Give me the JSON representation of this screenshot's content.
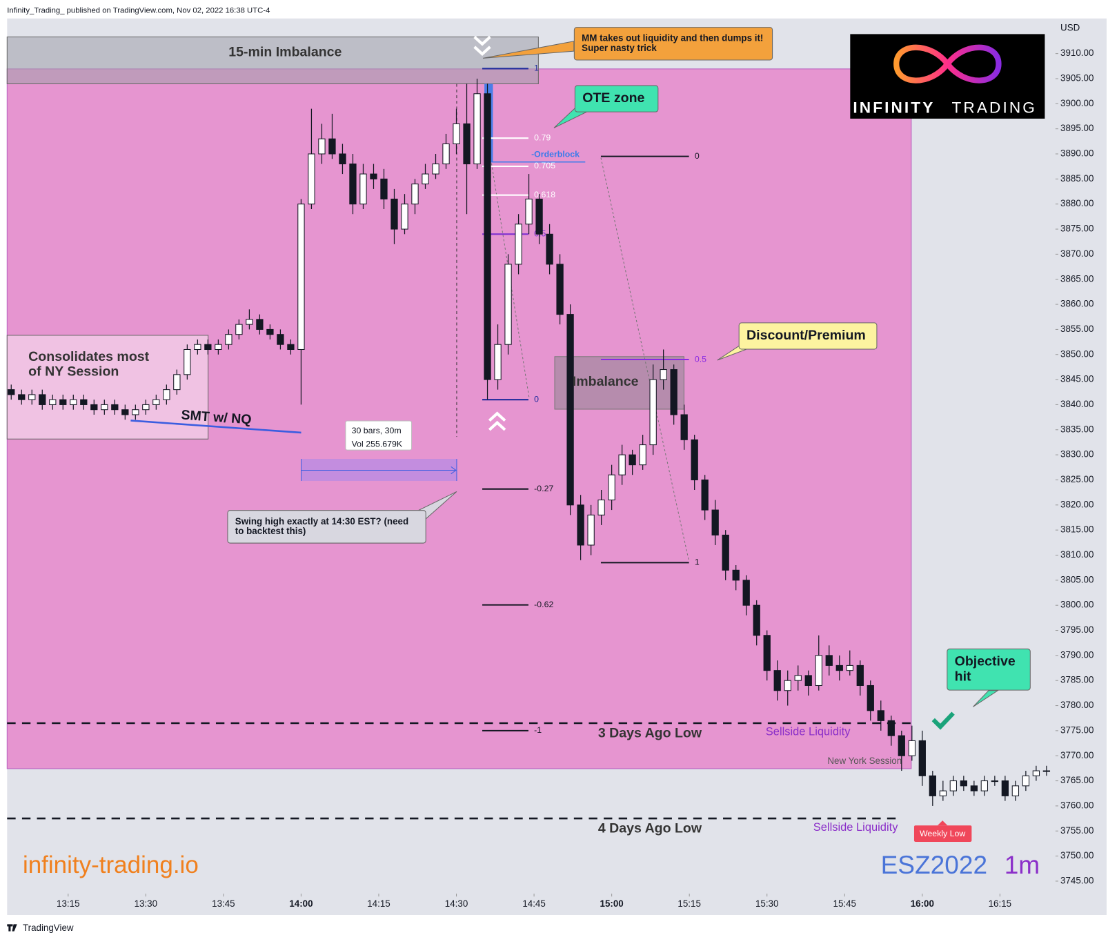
{
  "header": {
    "published": "Infinity_Trading_ published on TradingView.com, Nov 02, 2022 16:38 UTC-4",
    "footer": "TradingView"
  },
  "logo": {
    "word1": "INFINITY",
    "word2": "TRADING"
  },
  "watermark": {
    "site": "infinity-trading.io",
    "symbol": "ESZ2022",
    "interval": "1m"
  },
  "chart_data": {
    "type": "candlestick",
    "y_axis_label": "USD",
    "colors": {
      "up": "#ffffff",
      "down": "#131722",
      "wick": "#131722"
    },
    "grid": false,
    "xlim": [
      "13:03",
      "16:26"
    ],
    "xticks": [
      "13:15",
      "13:30",
      "13:45",
      "14:00",
      "14:15",
      "14:30",
      "14:45",
      "15:00",
      "15:15",
      "15:30",
      "15:45",
      "16:00",
      "16:15"
    ],
    "ylim": [
      3742.5,
      3917
    ],
    "yticks": [
      {
        "value": 3745,
        "label": "3745.00"
      },
      {
        "value": 3750,
        "label": "3750.00"
      },
      {
        "value": 3755,
        "label": "3755.00"
      },
      {
        "value": 3760,
        "label": "3760.00"
      },
      {
        "value": 3765,
        "label": "3765.00"
      },
      {
        "value": 3770,
        "label": "3770.00"
      },
      {
        "value": 3775,
        "label": "3775.00"
      },
      {
        "value": 3780,
        "label": "3780.00"
      },
      {
        "value": 3785,
        "label": "3785.00"
      },
      {
        "value": 3790,
        "label": "3790.00"
      },
      {
        "value": 3795,
        "label": "3795.00"
      },
      {
        "value": 3800,
        "label": "3800.00"
      },
      {
        "value": 3805,
        "label": "3805.00"
      },
      {
        "value": 3810,
        "label": "3810.00"
      },
      {
        "value": 3815,
        "label": "3815.00"
      },
      {
        "value": 3820,
        "label": "3820.00"
      },
      {
        "value": 3825,
        "label": "3825.00"
      },
      {
        "value": 3830,
        "label": "3830.00"
      },
      {
        "value": 3835,
        "label": "3835.00"
      },
      {
        "value": 3840,
        "label": "3840.00"
      },
      {
        "value": 3845,
        "label": "3845.00"
      },
      {
        "value": 3850,
        "label": "3850.00"
      },
      {
        "value": 3855,
        "label": "3855.00"
      },
      {
        "value": 3860,
        "label": "3860.00"
      },
      {
        "value": 3865,
        "label": "3865.00"
      },
      {
        "value": 3870,
        "label": "3870.00"
      },
      {
        "value": 3875,
        "label": "3875.00"
      },
      {
        "value": 3880,
        "label": "3880.00"
      },
      {
        "value": 3885,
        "label": "3885.00"
      },
      {
        "value": 3890,
        "label": "3890.00"
      },
      {
        "value": 3895,
        "label": "3895.00"
      },
      {
        "value": 3900,
        "label": "3900.00"
      },
      {
        "value": 3905,
        "label": "3905.00"
      },
      {
        "value": 3910,
        "label": "3910.00"
      }
    ],
    "x": [
      "13:04",
      "13:06",
      "13:08",
      "13:10",
      "13:12",
      "13:14",
      "13:16",
      "13:18",
      "13:20",
      "13:22",
      "13:24",
      "13:26",
      "13:28",
      "13:30",
      "13:32",
      "13:34",
      "13:36",
      "13:38",
      "13:40",
      "13:42",
      "13:44",
      "13:46",
      "13:48",
      "13:50",
      "13:52",
      "13:54",
      "13:56",
      "13:58",
      "14:00",
      "14:02",
      "14:04",
      "14:06",
      "14:08",
      "14:10",
      "14:12",
      "14:14",
      "14:16",
      "14:18",
      "14:20",
      "14:22",
      "14:24",
      "14:26",
      "14:28",
      "14:30",
      "14:32",
      "14:34",
      "14:36",
      "14:38",
      "14:40",
      "14:42",
      "14:44",
      "14:46",
      "14:48",
      "14:50",
      "14:52",
      "14:54",
      "14:56",
      "14:58",
      "15:00",
      "15:02",
      "15:04",
      "15:06",
      "15:08",
      "15:10",
      "15:12",
      "15:14",
      "15:16",
      "15:18",
      "15:20",
      "15:22",
      "15:24",
      "15:26",
      "15:28",
      "15:30",
      "15:32",
      "15:34",
      "15:36",
      "15:38",
      "15:40",
      "15:42",
      "15:44",
      "15:46",
      "15:48",
      "15:50",
      "15:52",
      "15:54",
      "15:56",
      "15:58",
      "16:00",
      "16:02",
      "16:04",
      "16:06",
      "16:08",
      "16:10",
      "16:12",
      "16:14",
      "16:16",
      "16:18",
      "16:20",
      "16:22",
      "16:24"
    ],
    "ohlc": [
      [
        3843,
        3844,
        3841,
        3842
      ],
      [
        3842,
        3843,
        3840,
        3841
      ],
      [
        3841,
        3843,
        3840,
        3842
      ],
      [
        3842,
        3843,
        3839,
        3840
      ],
      [
        3840,
        3842,
        3839,
        3841
      ],
      [
        3841,
        3842,
        3839,
        3840
      ],
      [
        3840,
        3842,
        3839,
        3841
      ],
      [
        3841,
        3842,
        3839,
        3840
      ],
      [
        3840,
        3841,
        3838,
        3839
      ],
      [
        3839,
        3841,
        3838,
        3840
      ],
      [
        3840,
        3841,
        3838,
        3839
      ],
      [
        3839,
        3840,
        3837,
        3838
      ],
      [
        3838,
        3840,
        3837,
        3839
      ],
      [
        3839,
        3841,
        3838,
        3840
      ],
      [
        3840,
        3842,
        3839,
        3841
      ],
      [
        3841,
        3844,
        3840,
        3843
      ],
      [
        3843,
        3847,
        3842,
        3846
      ],
      [
        3846,
        3852,
        3845,
        3851
      ],
      [
        3851,
        3853,
        3850,
        3852
      ],
      [
        3852,
        3853,
        3850,
        3851
      ],
      [
        3851,
        3853,
        3850,
        3852
      ],
      [
        3852,
        3855,
        3851,
        3854
      ],
      [
        3854,
        3857,
        3853,
        3856
      ],
      [
        3856,
        3859,
        3855,
        3857
      ],
      [
        3857,
        3858,
        3854,
        3855
      ],
      [
        3855,
        3856,
        3853,
        3854
      ],
      [
        3854,
        3855,
        3851,
        3852
      ],
      [
        3852,
        3853,
        3850,
        3851
      ],
      [
        3851,
        3881,
        3840,
        3880
      ],
      [
        3880,
        3899,
        3879,
        3890
      ],
      [
        3890,
        3896,
        3888,
        3893
      ],
      [
        3893,
        3898,
        3889,
        3890
      ],
      [
        3890,
        3892,
        3886,
        3888
      ],
      [
        3888,
        3890,
        3878,
        3880
      ],
      [
        3880,
        3888,
        3879,
        3886
      ],
      [
        3886,
        3888,
        3883,
        3885
      ],
      [
        3885,
        3887,
        3879,
        3881
      ],
      [
        3881,
        3883,
        3872,
        3875
      ],
      [
        3875,
        3882,
        3874,
        3880
      ],
      [
        3880,
        3885,
        3878,
        3884
      ],
      [
        3884,
        3888,
        3883,
        3886
      ],
      [
        3886,
        3890,
        3885,
        3888
      ],
      [
        3888,
        3894,
        3887,
        3892
      ],
      [
        3892,
        3899,
        3890,
        3896
      ],
      [
        3896,
        3904,
        3878,
        3888
      ],
      [
        3888,
        3905,
        3887,
        3902
      ],
      [
        3902,
        3904,
        3841,
        3845
      ],
      [
        3845,
        3856,
        3843,
        3852
      ],
      [
        3852,
        3870,
        3850,
        3868
      ],
      [
        3868,
        3878,
        3866,
        3876
      ],
      [
        3876,
        3886,
        3874,
        3881
      ],
      [
        3881,
        3882,
        3872,
        3874
      ],
      [
        3874,
        3876,
        3866,
        3868
      ],
      [
        3868,
        3870,
        3856,
        3858
      ],
      [
        3858,
        3860,
        3818,
        3820
      ],
      [
        3820,
        3822,
        3809,
        3812
      ],
      [
        3812,
        3820,
        3810,
        3818
      ],
      [
        3818,
        3823,
        3816,
        3821
      ],
      [
        3821,
        3828,
        3819,
        3826
      ],
      [
        3826,
        3832,
        3824,
        3830
      ],
      [
        3830,
        3831,
        3826,
        3828
      ],
      [
        3828,
        3834,
        3827,
        3832
      ],
      [
        3832,
        3848,
        3830,
        3845
      ],
      [
        3845,
        3851,
        3843,
        3847
      ],
      [
        3847,
        3848,
        3836,
        3838
      ],
      [
        3838,
        3840,
        3831,
        3833
      ],
      [
        3833,
        3834,
        3823,
        3825
      ],
      [
        3825,
        3826,
        3817,
        3819
      ],
      [
        3819,
        3821,
        3812,
        3814
      ],
      [
        3814,
        3815,
        3805,
        3807
      ],
      [
        3807,
        3808,
        3803,
        3805
      ],
      [
        3805,
        3806,
        3798,
        3800
      ],
      [
        3800,
        3801,
        3792,
        3794
      ],
      [
        3794,
        3795,
        3785,
        3787
      ],
      [
        3787,
        3789,
        3781,
        3783
      ],
      [
        3783,
        3787,
        3780,
        3785
      ],
      [
        3785,
        3788,
        3783,
        3786
      ],
      [
        3786,
        3787,
        3782,
        3784
      ],
      [
        3784,
        3794,
        3783,
        3790
      ],
      [
        3790,
        3792,
        3786,
        3788
      ],
      [
        3788,
        3790,
        3785,
        3787
      ],
      [
        3787,
        3791,
        3786,
        3788
      ],
      [
        3788,
        3789,
        3782,
        3784
      ],
      [
        3784,
        3785,
        3777,
        3779
      ],
      [
        3779,
        3781,
        3775,
        3777
      ],
      [
        3777,
        3778,
        3772,
        3774
      ],
      [
        3774,
        3775,
        3767,
        3770
      ],
      [
        3770,
        3776,
        3769,
        3773
      ],
      [
        3773,
        3775,
        3764,
        3766
      ],
      [
        3766,
        3767,
        3760,
        3762
      ],
      [
        3762,
        3765,
        3761,
        3763
      ],
      [
        3763,
        3766,
        3762,
        3765
      ],
      [
        3765,
        3766,
        3763,
        3764
      ],
      [
        3764,
        3765,
        3762,
        3763
      ],
      [
        3763,
        3766,
        3762,
        3765
      ],
      [
        3765,
        3766,
        3764,
        3765
      ],
      [
        3765,
        3766,
        3761,
        3762
      ],
      [
        3762,
        3765,
        3761,
        3764
      ],
      [
        3764,
        3767,
        3763,
        3766
      ],
      [
        3766,
        3768,
        3765,
        3767
      ],
      [
        3767,
        3768,
        3766,
        3767
      ]
    ],
    "fib": [
      {
        "p0": 3841,
        "p1": 3907,
        "levels": [
          1,
          0.79,
          0.705,
          0.618,
          0.5,
          0,
          -0.27,
          -0.62,
          -1
        ],
        "colors": [
          "#1e2a9c",
          "#ffffff",
          "#ffffff",
          "#ffffff",
          "#7b2fd0",
          "#1e2a9c",
          "#131722",
          "#131722",
          "#131722"
        ]
      },
      {
        "p0": 3889.5,
        "p1": 3808.5,
        "levels": [
          0,
          0.5,
          1
        ],
        "colors": [
          "#131722",
          "#8a2be2",
          "#131722"
        ]
      }
    ],
    "lows": [
      {
        "label": "3 Days Ago Low",
        "value": 3776.5,
        "note": "Sellside Liquidity"
      },
      {
        "label": "4 Days Ago Low",
        "value": 3757.5,
        "note": "Sellside Liquidity"
      }
    ],
    "annotations": {
      "imbalance_15": "15-min Imbalance",
      "mm": "MM takes out liquidity and then dumps it! Super nasty trick",
      "ote": "OTE zone",
      "orderblock": "-Orderblock",
      "discount": "Discount/Premium",
      "imbalance": "Imbalance",
      "consolidates": "Consolidates most of NY Session",
      "smt": "SMT w/ NQ",
      "bars": "30 bars, 30m",
      "vol": "Vol 255.679K",
      "swing": "Swing high exactly at 14:30 EST? (need to backtest this)",
      "session": "New York Session",
      "objective": "Objective hit",
      "weekly_low": "Weekly Low"
    }
  }
}
